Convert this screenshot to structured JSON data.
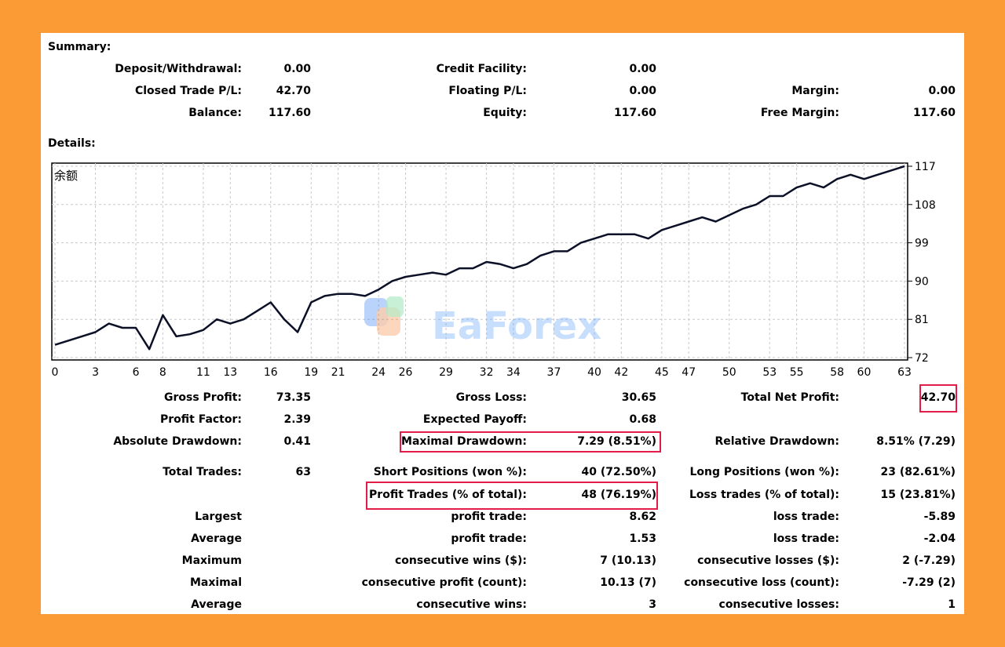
{
  "summary": {
    "heading": "Summary:",
    "deposit_label": "Deposit/Withdrawal:",
    "deposit_value": "0.00",
    "credit_label": "Credit Facility:",
    "credit_value": "0.00",
    "closed_pl_label": "Closed Trade P/L:",
    "closed_pl_value": "42.70",
    "floating_label": "Floating P/L:",
    "floating_value": "0.00",
    "margin_label": "Margin:",
    "margin_value": "0.00",
    "balance_label": "Balance:",
    "balance_value": "117.60",
    "equity_label": "Equity:",
    "equity_value": "117.60",
    "free_margin_label": "Free Margin:",
    "free_margin_value": "117.60"
  },
  "details": {
    "heading": "Details:"
  },
  "watermark": "EaForex",
  "chart_data": {
    "type": "line",
    "title": "余额",
    "x_ticks": [
      "0",
      "3",
      "6",
      "8",
      "11",
      "13",
      "16",
      "19",
      "21",
      "24",
      "26",
      "29",
      "32",
      "34",
      "37",
      "40",
      "42",
      "45",
      "47",
      "50",
      "53",
      "55",
      "58",
      "60",
      "63"
    ],
    "y_ticks": [
      "72",
      "81",
      "90",
      "99",
      "108",
      "117"
    ],
    "ylim": [
      72,
      117
    ],
    "xlim": [
      0,
      63
    ],
    "grid": true,
    "series": [
      {
        "values": [
          75,
          76,
          77,
          78,
          80,
          79,
          79,
          74,
          82,
          77,
          77.5,
          78.5,
          81,
          80,
          81,
          83,
          85,
          81,
          78,
          85,
          86.5,
          87,
          87,
          86.5,
          88,
          90,
          91,
          91.5,
          92,
          91.5,
          93,
          93,
          94.5,
          94,
          93,
          94,
          96,
          97,
          97,
          99,
          100,
          101,
          101,
          101,
          100,
          102,
          103,
          104,
          105,
          104,
          105.5,
          107,
          108,
          110,
          110,
          112,
          113,
          112,
          114,
          115,
          114,
          115,
          116,
          117
        ]
      }
    ]
  },
  "stats": {
    "gross_profit_label": "Gross Profit:",
    "gross_profit_value": "73.35",
    "gross_loss_label": "Gross Loss:",
    "gross_loss_value": "30.65",
    "total_net_label": "Total Net Profit:",
    "total_net_value": "42.70",
    "profit_factor_label": "Profit Factor:",
    "profit_factor_value": "2.39",
    "expected_payoff_label": "Expected Payoff:",
    "expected_payoff_value": "0.68",
    "abs_dd_label": "Absolute Drawdown:",
    "abs_dd_value": "0.41",
    "max_dd_label": "Maximal Drawdown:",
    "max_dd_value": "7.29 (8.51%)",
    "rel_dd_label": "Relative Drawdown:",
    "rel_dd_value": "8.51% (7.29)",
    "total_trades_label": "Total Trades:",
    "total_trades_value": "63",
    "short_label": "Short Positions (won %):",
    "short_value": "40 (72.50%)",
    "long_label": "Long Positions (won %):",
    "long_value": "23 (82.61%)",
    "profit_trades_label": "Profit Trades (% of total):",
    "profit_trades_value": "48 (76.19%)",
    "loss_trades_label": "Loss trades (% of total):",
    "loss_trades_value": "15 (23.81%)",
    "largest_label": "Largest",
    "largest_profit_label": "profit trade:",
    "largest_profit_value": "8.62",
    "largest_loss_label": "loss trade:",
    "largest_loss_value": "-5.89",
    "average_label": "Average",
    "average_profit_label": "profit trade:",
    "average_profit_value": "1.53",
    "average_loss_label": "loss trade:",
    "average_loss_value": "-2.04",
    "maximum_label": "Maximum",
    "max_wins_label": "consecutive wins ($):",
    "max_wins_value": "7 (10.13)",
    "max_losses_label": "consecutive losses ($):",
    "max_losses_value": "2 (-7.29)",
    "maximal_label": "Maximal",
    "maximal_profit_label": "consecutive profit (count):",
    "maximal_profit_value": "10.13 (7)",
    "maximal_loss_label": "consecutive loss (count):",
    "maximal_loss_value": "-7.29 (2)",
    "average2_label": "Average",
    "avg_wins_label": "consecutive wins:",
    "avg_wins_value": "3",
    "avg_losses_label": "consecutive losses:",
    "avg_losses_value": "1"
  },
  "colors": {
    "frame": "#fb9b35",
    "highlight": "#e11d48",
    "line": "#0b1026",
    "grid": "#c8c8c8"
  }
}
